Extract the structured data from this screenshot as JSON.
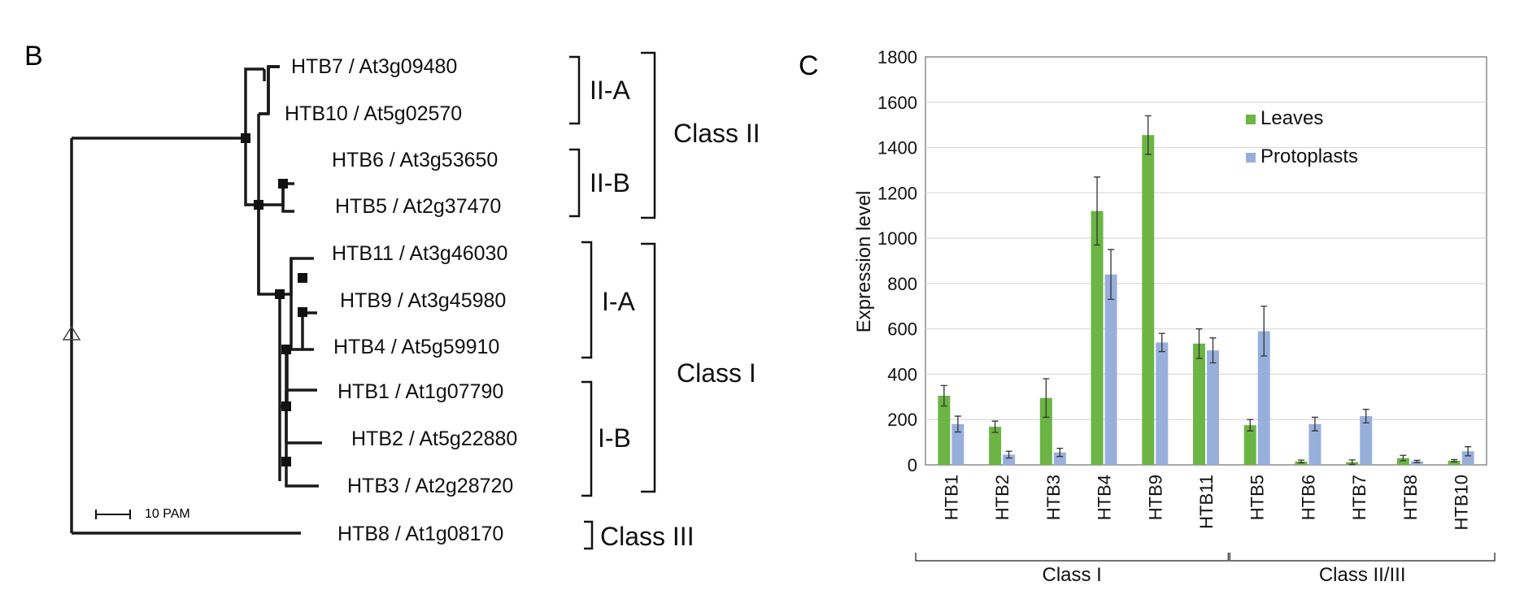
{
  "panel_b": {
    "label": "B",
    "leaves": [
      "HTB7 / At3g09480",
      "HTB10 / At5g02570",
      "HTB6 / At3g53650",
      "HTB5 / At2g37470",
      "HTB11 / At3g46030",
      "HTB9 / At3g45980",
      "HTB4 / At5g59910",
      "HTB1 / At1g07790",
      "HTB2 / At5g22880",
      "HTB3 / At2g28720",
      "HTB8 / At1g08170"
    ],
    "subgroups": [
      "II-A",
      "II-B",
      "I-A",
      "I-B"
    ],
    "classes": [
      "Class II",
      "Class I",
      "Class III"
    ],
    "scale_label": "10 PAM"
  },
  "chart_data": {
    "type": "bar",
    "panel_label": "C",
    "categories": [
      "HTB1",
      "HTB2",
      "HTB3",
      "HTB4",
      "HTB9",
      "HTB11",
      "HTB5",
      "HTB6",
      "HTB7",
      "HTB8",
      "HTB10"
    ],
    "series": [
      {
        "name": "Leaves",
        "color": "#6cb544",
        "values": [
          305,
          168,
          295,
          1120,
          1455,
          535,
          175,
          15,
          12,
          30,
          18
        ],
        "errors": [
          45,
          25,
          85,
          150,
          85,
          65,
          25,
          6,
          10,
          12,
          5
        ]
      },
      {
        "name": "Protoplasts",
        "color": "#98afdc",
        "values": [
          180,
          45,
          55,
          840,
          540,
          505,
          590,
          180,
          215,
          15,
          60
        ],
        "errors": [
          35,
          15,
          18,
          110,
          40,
          55,
          110,
          30,
          30,
          5,
          20
        ]
      }
    ],
    "ylabel": "Expression level",
    "xlabel": "",
    "ylim": [
      0,
      1800
    ],
    "yticks": [
      "0",
      "200",
      "400",
      "600",
      "800",
      "1000",
      "1200",
      "1400",
      "1600",
      "1800"
    ],
    "grid": true,
    "legend_position": "top-right",
    "groups": [
      {
        "label": "Class I",
        "categories": [
          "HTB1",
          "HTB2",
          "HTB3",
          "HTB4",
          "HTB9",
          "HTB11"
        ]
      },
      {
        "label": "Class II/III",
        "categories": [
          "HTB5",
          "HTB6",
          "HTB7",
          "HTB8",
          "HTB10"
        ]
      }
    ]
  }
}
